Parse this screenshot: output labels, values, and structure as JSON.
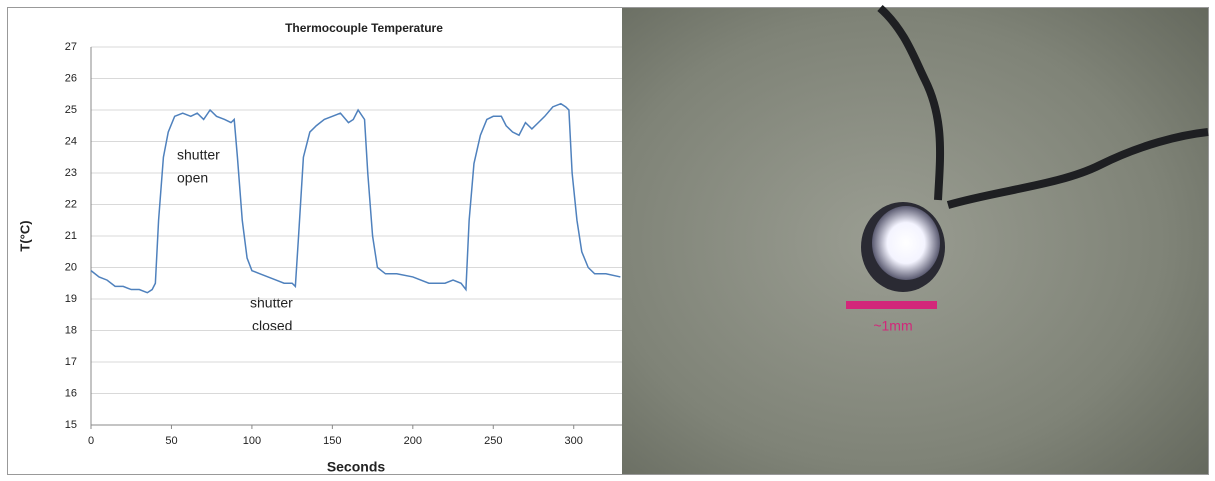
{
  "chart_data": {
    "type": "line",
    "title": "Thermocouple Temperature",
    "x_label": "Seconds",
    "y_label": "T(°C)",
    "x": [
      0,
      5,
      10,
      15,
      20,
      25,
      30,
      35,
      38,
      40,
      42,
      45,
      48,
      52,
      57,
      62,
      66,
      70,
      74,
      78,
      83,
      87,
      89,
      91,
      94,
      97,
      100,
      105,
      110,
      115,
      120,
      125,
      127,
      129,
      132,
      136,
      140,
      145,
      150,
      155,
      160,
      163,
      166,
      170,
      172,
      175,
      178,
      183,
      190,
      200,
      210,
      220,
      225,
      230,
      233,
      235,
      238,
      242,
      246,
      250,
      255,
      258,
      262,
      266,
      270,
      274,
      278,
      282,
      287,
      292,
      295,
      297,
      299,
      302,
      305,
      309,
      313,
      320,
      329
    ],
    "values": [
      19.9,
      19.7,
      19.6,
      19.4,
      19.4,
      19.3,
      19.3,
      19.2,
      19.3,
      19.5,
      21.5,
      23.5,
      24.3,
      24.8,
      24.9,
      24.8,
      24.9,
      24.7,
      25.0,
      24.8,
      24.7,
      24.6,
      24.7,
      23.5,
      21.5,
      20.3,
      19.9,
      19.8,
      19.7,
      19.6,
      19.5,
      19.5,
      19.4,
      21.0,
      23.5,
      24.3,
      24.5,
      24.7,
      24.8,
      24.9,
      24.6,
      24.7,
      25.0,
      24.7,
      23.0,
      21.0,
      20.0,
      19.8,
      19.8,
      19.7,
      19.5,
      19.5,
      19.6,
      19.5,
      19.3,
      21.5,
      23.3,
      24.2,
      24.7,
      24.8,
      24.8,
      24.5,
      24.3,
      24.2,
      24.6,
      24.4,
      24.6,
      24.8,
      25.1,
      25.2,
      25.1,
      25.0,
      23.0,
      21.5,
      20.5,
      20.0,
      19.8,
      19.8,
      19.7
    ],
    "color": "#4f81bd",
    "xlim": [
      0,
      330
    ],
    "xticks": [
      0,
      50,
      100,
      150,
      200,
      250,
      300
    ],
    "ylim": [
      15,
      27
    ],
    "yticks": [
      15,
      16,
      17,
      18,
      19,
      20,
      21,
      22,
      23,
      24,
      25,
      26,
      27
    ],
    "grid": true,
    "annotations": [
      [
        "shutter",
        "open"
      ],
      [
        "shutter",
        "closed"
      ]
    ]
  },
  "photo": {
    "scale_label": "~1mm"
  }
}
